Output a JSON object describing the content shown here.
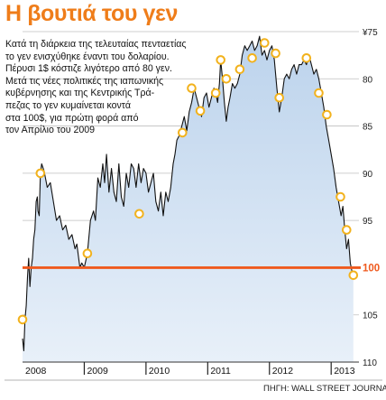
{
  "title": "Η βουτιά του γεν",
  "description": [
    "Κατά τη διάρκεια της τελευταίας πενταετίας",
    "το γεν ενισχύθηκε έναντι του δολαρίου.",
    "Πέρυσι 1$ κόστιζε λιγότερο από 80 γεν.",
    "Μετά τις νέες πολιτικές της ιαπωνικής",
    "κυβέρνησης και της Κεντρικής Τρά-",
    "πεζας το γεν κυμαίνεται κοντά",
    "στα 100$, για πρώτη φορά από",
    "τον Απρίλιο του 2009"
  ],
  "source": "ΠΗΓΗ: WALL STREET JOURNAL",
  "chart_data": {
    "type": "line",
    "title": "Η βουτιά του γεν",
    "xlabel": "",
    "ylabel": "",
    "x_ticks": [
      "2008",
      "2009",
      "2010",
      "2011",
      "2012",
      "2013"
    ],
    "x_range": [
      2008.0,
      2013.45
    ],
    "y_tick_labels": [
      "¥75",
      "80",
      "85",
      "90",
      "95",
      "100",
      "105",
      "110"
    ],
    "y_ticks": [
      75,
      80,
      85,
      90,
      95,
      100,
      105,
      110
    ],
    "ylim": [
      75,
      110
    ],
    "y_axis_inverted": true,
    "y_axis_position": "right",
    "grid": "horizontal",
    "colors": {
      "line": "#111111",
      "fill_top": "#bcd3ec",
      "fill_bottom": "#e8f0f9",
      "reference": "#ef5a1e",
      "marker_fill": "#ffffff",
      "marker_stroke": "#f2b21d",
      "grid": "#bfbfbf",
      "title": "#ef7d1a"
    },
    "reference_line": 100,
    "series": [
      {
        "values": [
          [
            2008.0,
            107.5
          ],
          [
            2008.02,
            108.8
          ],
          [
            2008.04,
            105.5
          ],
          [
            2008.06,
            104.0
          ],
          [
            2008.08,
            101.0
          ],
          [
            2008.1,
            99.0
          ],
          [
            2008.12,
            102.0
          ],
          [
            2008.14,
            100.0
          ],
          [
            2008.16,
            99.0
          ],
          [
            2008.18,
            97.0
          ],
          [
            2008.2,
            96.0
          ],
          [
            2008.22,
            93.0
          ],
          [
            2008.24,
            92.5
          ],
          [
            2008.25,
            94.0
          ],
          [
            2008.27,
            94.5
          ],
          [
            2008.29,
            90.0
          ],
          [
            2008.31,
            89.0
          ],
          [
            2008.35,
            89.8
          ],
          [
            2008.4,
            91.5
          ],
          [
            2008.45,
            91.0
          ],
          [
            2008.5,
            93.0
          ],
          [
            2008.55,
            95.0
          ],
          [
            2008.6,
            94.5
          ],
          [
            2008.65,
            96.0
          ],
          [
            2008.7,
            95.5
          ],
          [
            2008.75,
            97.0
          ],
          [
            2008.8,
            96.5
          ],
          [
            2008.85,
            98.0
          ],
          [
            2008.88,
            97.5
          ],
          [
            2008.93,
            100.0
          ],
          [
            2008.96,
            99.5
          ],
          [
            2009.0,
            100.0
          ],
          [
            2009.05,
            98.5
          ],
          [
            2009.1,
            95.0
          ],
          [
            2009.15,
            94.0
          ],
          [
            2009.18,
            95.0
          ],
          [
            2009.22,
            90.5
          ],
          [
            2009.26,
            91.5
          ],
          [
            2009.3,
            89.0
          ],
          [
            2009.33,
            91.0
          ],
          [
            2009.36,
            88.0
          ],
          [
            2009.4,
            92.0
          ],
          [
            2009.44,
            89.5
          ],
          [
            2009.48,
            92.0
          ],
          [
            2009.52,
            93.0
          ],
          [
            2009.56,
            89.0
          ],
          [
            2009.6,
            92.5
          ],
          [
            2009.64,
            93.5
          ],
          [
            2009.68,
            90.0
          ],
          [
            2009.72,
            91.5
          ],
          [
            2009.76,
            89.0
          ],
          [
            2009.8,
            89.5
          ],
          [
            2009.84,
            91.5
          ],
          [
            2009.88,
            89.0
          ],
          [
            2009.92,
            91.0
          ],
          [
            2009.96,
            89.5
          ],
          [
            2010.0,
            90.0
          ],
          [
            2010.04,
            92.0
          ],
          [
            2010.08,
            91.0
          ],
          [
            2010.12,
            90.0
          ],
          [
            2010.16,
            93.0
          ],
          [
            2010.2,
            94.0
          ],
          [
            2010.24,
            92.0
          ],
          [
            2010.28,
            94.5
          ],
          [
            2010.32,
            92.0
          ],
          [
            2010.36,
            93.0
          ],
          [
            2010.4,
            91.5
          ],
          [
            2010.44,
            89.0
          ],
          [
            2010.47,
            88.0
          ],
          [
            2010.5,
            86.5
          ],
          [
            2010.54,
            86.0
          ],
          [
            2010.58,
            85.0
          ],
          [
            2010.62,
            84.0
          ],
          [
            2010.66,
            85.5
          ],
          [
            2010.7,
            83.5
          ],
          [
            2010.74,
            82.5
          ],
          [
            2010.78,
            81.0
          ],
          [
            2010.82,
            82.0
          ],
          [
            2010.86,
            83.0
          ],
          [
            2010.9,
            84.0
          ],
          [
            2010.94,
            82.0
          ],
          [
            2010.98,
            81.5
          ],
          [
            2011.02,
            83.0
          ],
          [
            2011.06,
            82.0
          ],
          [
            2011.1,
            81.0
          ],
          [
            2011.13,
            81.5
          ],
          [
            2011.16,
            82.5
          ],
          [
            2011.19,
            80.5
          ],
          [
            2011.21,
            78.0
          ],
          [
            2011.24,
            80.0
          ],
          [
            2011.27,
            82.5
          ],
          [
            2011.3,
            84.5
          ],
          [
            2011.33,
            83.0
          ],
          [
            2011.36,
            82.0
          ],
          [
            2011.4,
            80.5
          ],
          [
            2011.44,
            81.0
          ],
          [
            2011.48,
            80.5
          ],
          [
            2011.52,
            79.5
          ],
          [
            2011.56,
            77.5
          ],
          [
            2011.6,
            76.5
          ],
          [
            2011.64,
            77.0
          ],
          [
            2011.68,
            76.5
          ],
          [
            2011.72,
            76.0
          ],
          [
            2011.76,
            77.0
          ],
          [
            2011.8,
            76.5
          ],
          [
            2011.84,
            75.5
          ],
          [
            2011.88,
            77.5
          ],
          [
            2011.92,
            77.0
          ],
          [
            2011.96,
            78.0
          ],
          [
            2012.0,
            77.0
          ],
          [
            2012.04,
            76.5
          ],
          [
            2012.08,
            78.0
          ],
          [
            2012.12,
            81.0
          ],
          [
            2012.16,
            83.5
          ],
          [
            2012.2,
            82.0
          ],
          [
            2012.24,
            80.0
          ],
          [
            2012.28,
            79.5
          ],
          [
            2012.32,
            80.0
          ],
          [
            2012.36,
            79.0
          ],
          [
            2012.4,
            78.5
          ],
          [
            2012.44,
            79.5
          ],
          [
            2012.48,
            78.5
          ],
          [
            2012.52,
            78.5
          ],
          [
            2012.56,
            78.0
          ],
          [
            2012.6,
            78.5
          ],
          [
            2012.64,
            77.5
          ],
          [
            2012.68,
            78.5
          ],
          [
            2012.72,
            79.5
          ],
          [
            2012.76,
            79.0
          ],
          [
            2012.8,
            80.0
          ],
          [
            2012.84,
            81.5
          ],
          [
            2012.88,
            83.0
          ],
          [
            2012.92,
            85.0
          ],
          [
            2012.96,
            86.5
          ],
          [
            2013.0,
            88.0
          ],
          [
            2013.04,
            89.5
          ],
          [
            2013.08,
            91.5
          ],
          [
            2013.12,
            93.0
          ],
          [
            2013.16,
            94.5
          ],
          [
            2013.19,
            93.5
          ],
          [
            2013.22,
            96.0
          ],
          [
            2013.25,
            98.0
          ],
          [
            2013.28,
            97.0
          ],
          [
            2013.31,
            99.5
          ],
          [
            2013.34,
            100.5
          ],
          [
            2013.36,
            101.0
          ]
        ]
      }
    ],
    "markers": [
      [
        2008.0,
        105.5
      ],
      [
        2008.29,
        90.0
      ],
      [
        2009.05,
        98.5
      ],
      [
        2009.89,
        94.3
      ],
      [
        2010.59,
        85.7
      ],
      [
        2010.74,
        81.0
      ],
      [
        2010.88,
        83.4
      ],
      [
        2011.13,
        81.5
      ],
      [
        2011.21,
        78.0
      ],
      [
        2011.3,
        80.0
      ],
      [
        2011.52,
        79.0
      ],
      [
        2011.72,
        77.8
      ],
      [
        2011.92,
        76.2
      ],
      [
        2012.1,
        77.3
      ],
      [
        2012.16,
        82.0
      ],
      [
        2012.6,
        77.8
      ],
      [
        2012.8,
        81.5
      ],
      [
        2012.93,
        83.8
      ],
      [
        2013.15,
        92.5
      ],
      [
        2013.25,
        96.0
      ],
      [
        2013.36,
        100.8
      ]
    ]
  }
}
